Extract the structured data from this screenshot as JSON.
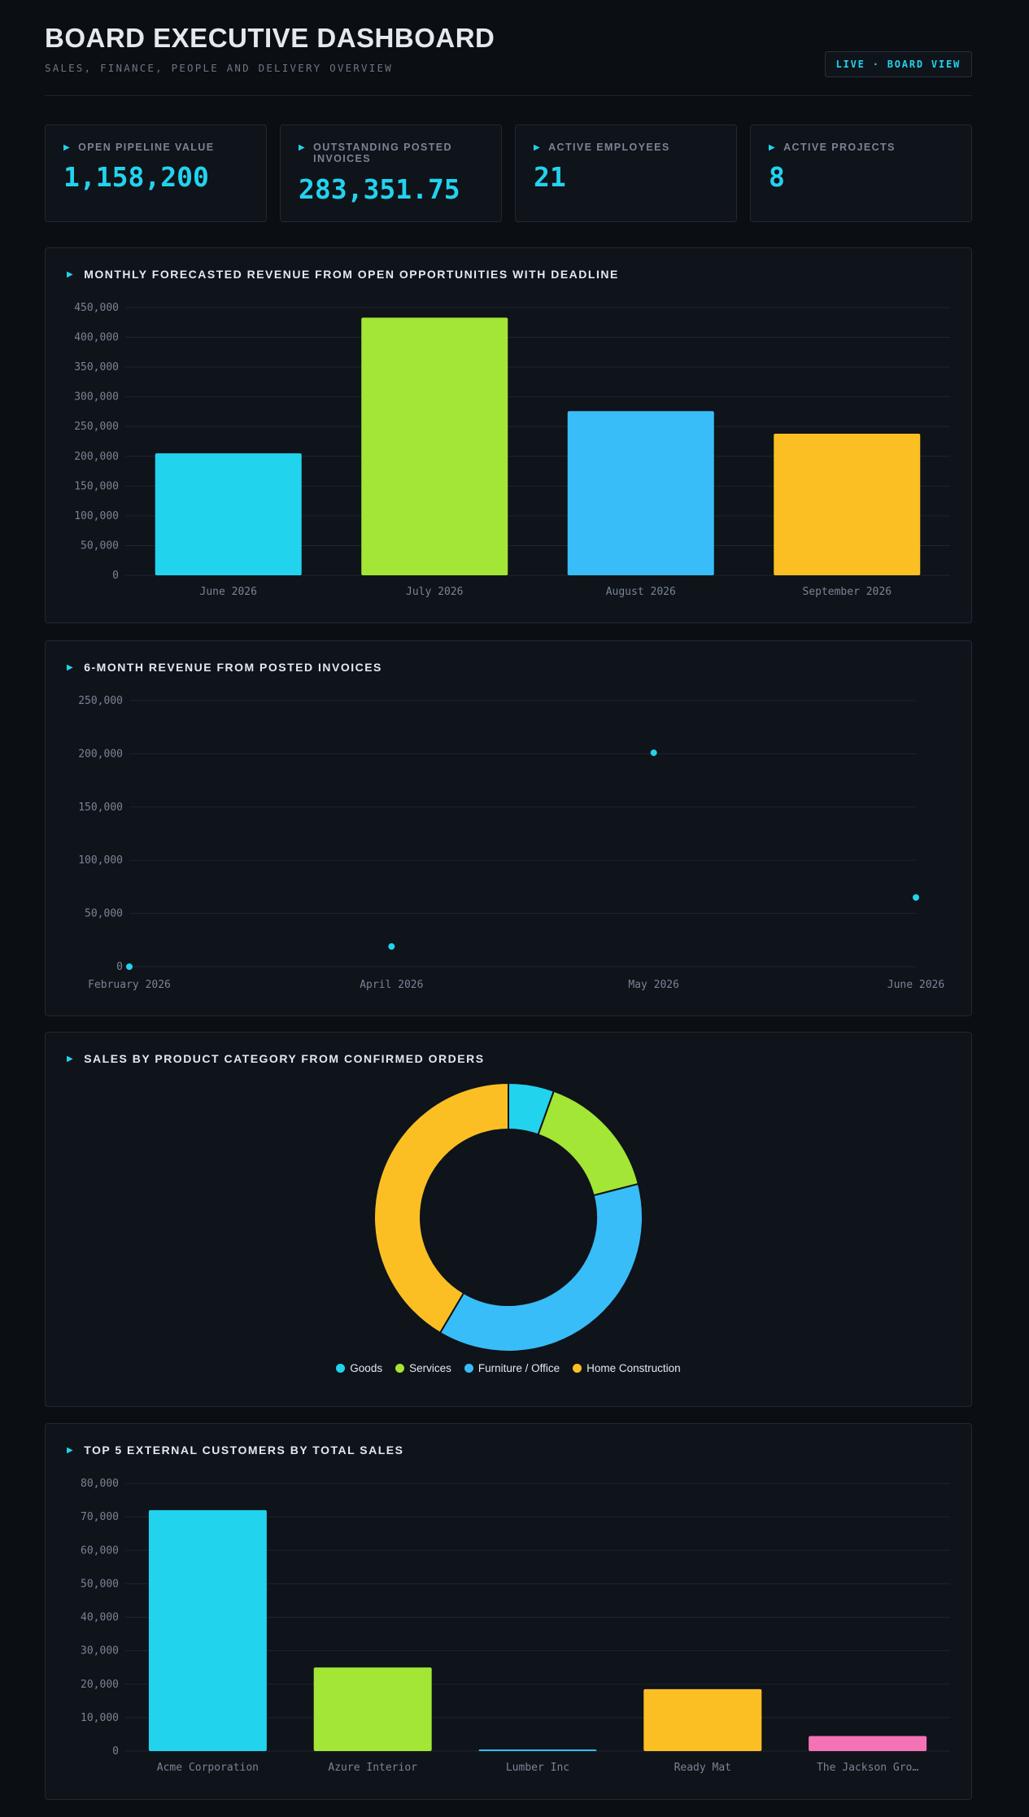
{
  "header": {
    "title": "BOARD EXECUTIVE DASHBOARD",
    "subtitle": "SALES, FINANCE, PEOPLE AND DELIVERY OVERVIEW",
    "badge": "LIVE · BOARD VIEW"
  },
  "kpis": [
    {
      "label": "OPEN PIPELINE VALUE",
      "value": "1,158,200"
    },
    {
      "label": "OUTSTANDING POSTED INVOICES",
      "value": "283,351.75"
    },
    {
      "label": "ACTIVE EMPLOYEES",
      "value": "21"
    },
    {
      "label": "ACTIVE PROJECTS",
      "value": "8"
    }
  ],
  "panels": {
    "forecast": {
      "title": "MONTHLY FORECASTED REVENUE FROM OPEN OPPORTUNITIES WITH DEADLINE"
    },
    "invoices": {
      "title": "6-MONTH REVENUE FROM POSTED INVOICES"
    },
    "categories": {
      "title": "SALES BY PRODUCT CATEGORY FROM CONFIRMED ORDERS"
    },
    "customers": {
      "title": "TOP 5 EXTERNAL CUSTOMERS BY TOTAL SALES"
    }
  },
  "colors": {
    "cyan": "#22d3ee",
    "lime": "#a3e635",
    "sky": "#38bdf8",
    "amber": "#fbbf24",
    "pink": "#f472b6"
  },
  "chart_data": [
    {
      "id": "forecast",
      "type": "bar",
      "categories": [
        "June 2026",
        "July 2026",
        "August 2026",
        "September 2026"
      ],
      "values": [
        205000,
        433000,
        276000,
        238000
      ],
      "colors": [
        "#22d3ee",
        "#a3e635",
        "#38bdf8",
        "#fbbf24"
      ],
      "ylim": [
        0,
        450000
      ],
      "yticks": [
        0,
        50000,
        100000,
        150000,
        200000,
        250000,
        300000,
        350000,
        400000,
        450000
      ],
      "ytick_labels": [
        "0",
        "50,000",
        "100,000",
        "150,000",
        "200,000",
        "250,000",
        "300,000",
        "350,000",
        "400,000",
        "450,000"
      ],
      "grid": true
    },
    {
      "id": "invoices",
      "type": "scatter",
      "x": [
        "February 2026",
        "April 2026",
        "May 2026",
        "June 2026"
      ],
      "y": [
        0,
        19000,
        201000,
        65000
      ],
      "color": "#22d3ee",
      "ylim": [
        0,
        250000
      ],
      "yticks": [
        0,
        50000,
        100000,
        150000,
        200000,
        250000
      ],
      "ytick_labels": [
        "0",
        "50,000",
        "100,000",
        "150,000",
        "200,000",
        "250,000"
      ],
      "grid": true
    },
    {
      "id": "categories",
      "type": "pie",
      "labels": [
        "Goods",
        "Services",
        "Furniture / Office",
        "Home Construction"
      ],
      "values": [
        5.5,
        15.5,
        37.5,
        41.5
      ],
      "colors": [
        "#22d3ee",
        "#a3e635",
        "#38bdf8",
        "#fbbf24"
      ],
      "donut": true,
      "legend": "bottom"
    },
    {
      "id": "customers",
      "type": "bar",
      "categories": [
        "Acme Corporation",
        "Azure Interior",
        "Lumber Inc",
        "Ready Mat",
        "The Jackson Gro…"
      ],
      "values": [
        72000,
        25000,
        500,
        18500,
        4500
      ],
      "colors": [
        "#22d3ee",
        "#a3e635",
        "#38bdf8",
        "#fbbf24",
        "#f472b6"
      ],
      "ylim": [
        0,
        80000
      ],
      "yticks": [
        0,
        10000,
        20000,
        30000,
        40000,
        50000,
        60000,
        70000,
        80000
      ],
      "ytick_labels": [
        "0",
        "10,000",
        "20,000",
        "30,000",
        "40,000",
        "50,000",
        "60,000",
        "70,000",
        "80,000"
      ],
      "grid": true
    }
  ]
}
